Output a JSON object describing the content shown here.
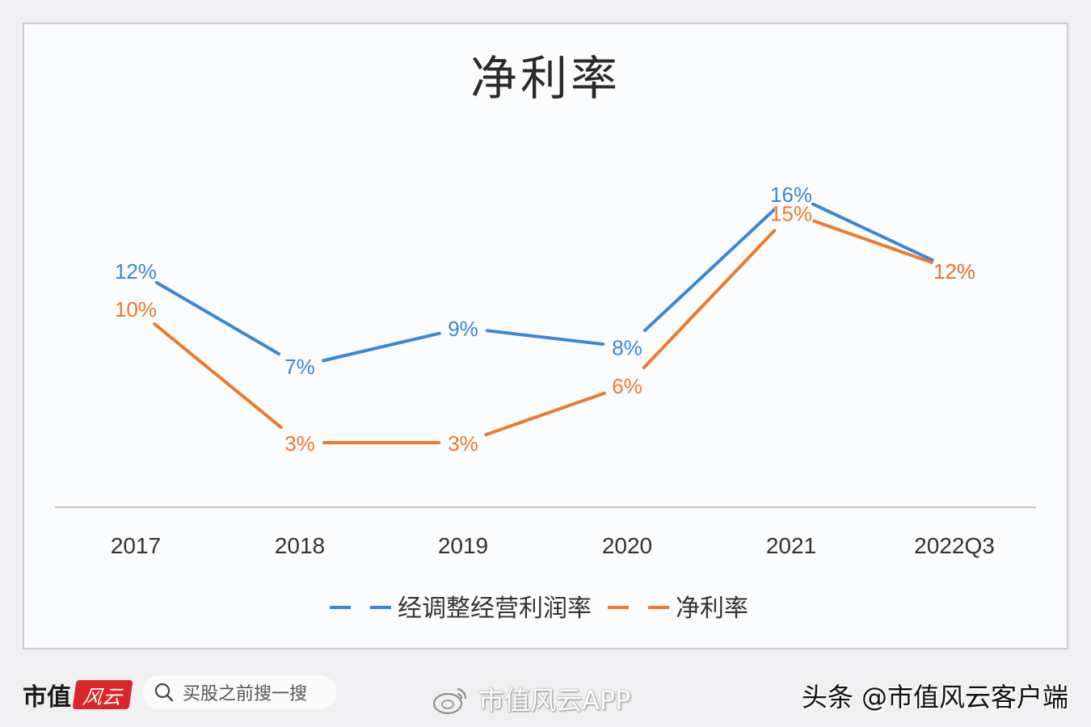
{
  "chart_data": {
    "type": "line",
    "title": "净利率",
    "categories": [
      "2017",
      "2018",
      "2019",
      "2020",
      "2021",
      "2022Q3"
    ],
    "series": [
      {
        "name": "经调整经营利润率",
        "color": "#3a87d6",
        "values": [
          12,
          7,
          9,
          8,
          16,
          12
        ],
        "labels": [
          "12%",
          "7%",
          "9%",
          "8%",
          "16%",
          "12%"
        ]
      },
      {
        "name": "净利率",
        "color": "#ec7a2c",
        "values": [
          10,
          3,
          3,
          6,
          15,
          12
        ],
        "labels": [
          "10%",
          "3%",
          "3%",
          "6%",
          "15%",
          "12%"
        ]
      }
    ],
    "xlabel": "",
    "ylabel": "",
    "grid": false,
    "legend_position": "bottom",
    "value_unit": "%"
  },
  "footer": {
    "brand_text": "市值",
    "brand_logo_text": "风云",
    "search_placeholder": "买股之前搜一搜",
    "weibo_text": "市值风云APP",
    "toutiao_text": "头条 @市值风云客户端"
  }
}
